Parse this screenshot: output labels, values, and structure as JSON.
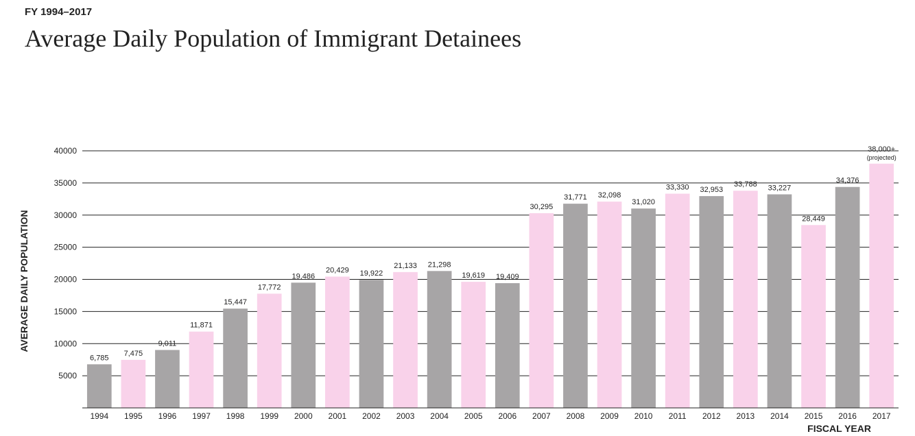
{
  "chart_data": {
    "type": "bar",
    "kicker": "FY 1994–2017",
    "title": "Average Daily Population of Immigrant Detainees",
    "y_label": "AVERAGE DAILY POPULATION",
    "x_label": "FISCAL YEAR",
    "annotation": "(projected)",
    "categories": [
      "1994",
      "1995",
      "1996",
      "1997",
      "1998",
      "1999",
      "2000",
      "2001",
      "2002",
      "2003",
      "2004",
      "2005",
      "2006",
      "2007",
      "2008",
      "2009",
      "2010",
      "2011",
      "2012",
      "2013",
      "2014",
      "2015",
      "2016",
      "2017"
    ],
    "values": [
      6785,
      7475,
      9011,
      11871,
      15447,
      17772,
      19486,
      20429,
      19922,
      21133,
      21298,
      19619,
      19409,
      30295,
      31771,
      32098,
      31020,
      33330,
      32953,
      33788,
      33227,
      28449,
      34376,
      38000
    ],
    "value_labels": [
      "6,785",
      "7,475",
      "9,011",
      "11,871",
      "15,447",
      "17,772",
      "19,486",
      "20,429",
      "19,922",
      "21,133",
      "21,298",
      "19,619",
      "19,409",
      "30,295",
      "31,771",
      "32,098",
      "31,020",
      "33,330",
      "32,953",
      "33,788",
      "33,227",
      "28,449",
      "34,376",
      "38,000+"
    ],
    "colors": [
      "#a7a5a6",
      "#f9d2ea",
      "#a7a5a6",
      "#f9d2ea",
      "#a7a5a6",
      "#f9d2ea",
      "#a7a5a6",
      "#f9d2ea",
      "#a7a5a6",
      "#f9d2ea",
      "#a7a5a6",
      "#f9d2ea",
      "#a7a5a6",
      "#f9d2ea",
      "#a7a5a6",
      "#f9d2ea",
      "#a7a5a6",
      "#f9d2ea",
      "#a7a5a6",
      "#f9d2ea",
      "#a7a5a6",
      "#f9d2ea",
      "#a7a5a6",
      "#f9d2ea"
    ],
    "ylim": [
      0,
      40000
    ],
    "yticks": [
      5000,
      10000,
      15000,
      20000,
      25000,
      30000,
      35000,
      40000
    ],
    "grid": true
  }
}
